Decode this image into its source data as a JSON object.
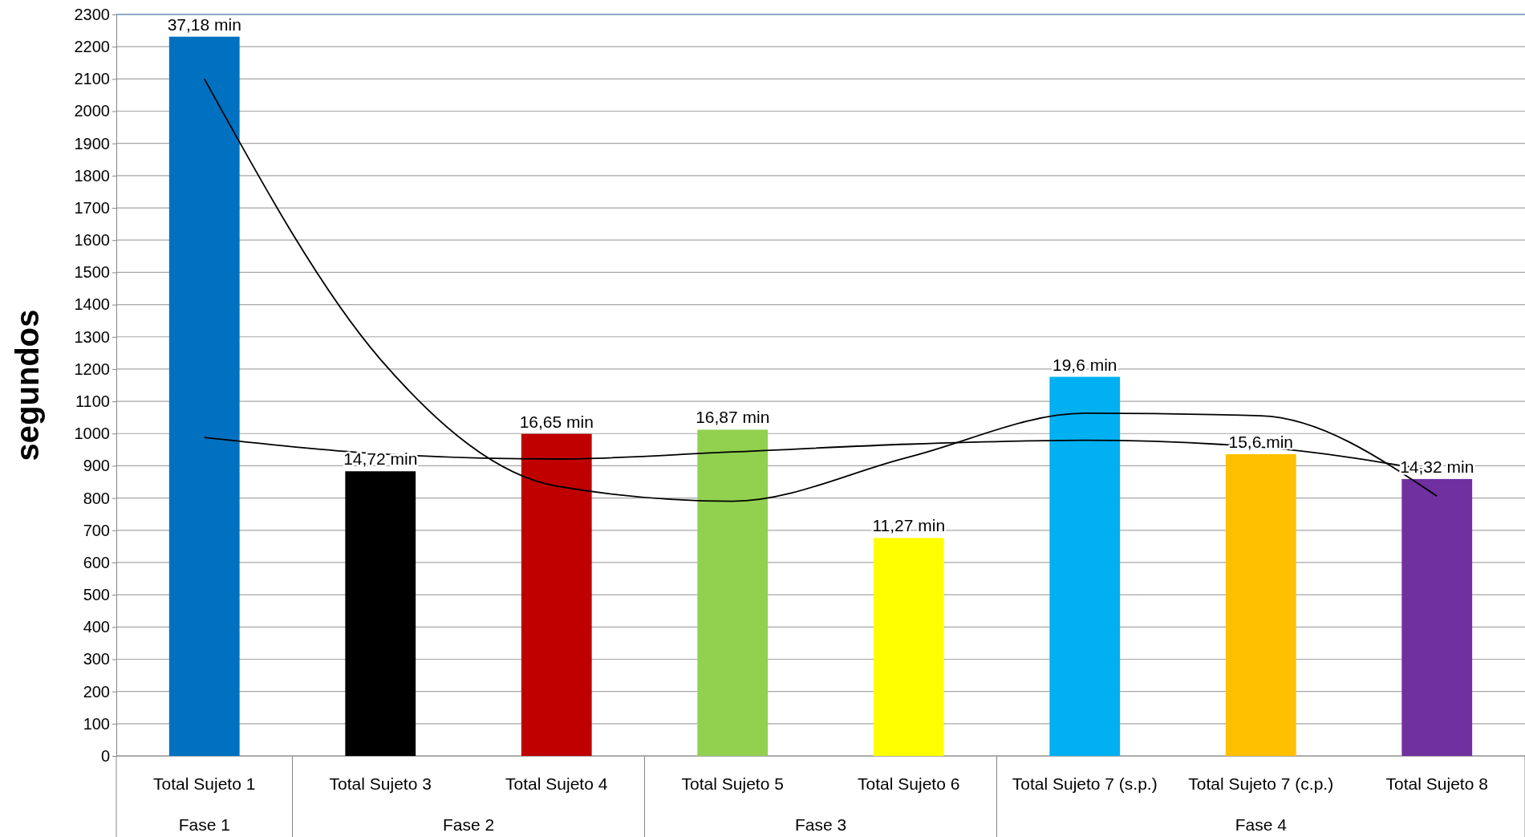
{
  "chart_data": {
    "type": "bar",
    "ylabel": "segundos",
    "categories": [
      "Total Sujeto 1",
      "Total Sujeto 3",
      "Total Sujeto 4",
      "Total Sujeto 5",
      "Total Sujeto 6",
      "Total Sujeto 7 (s.p.)",
      "Total Sujeto 7 (c.p.)",
      "Total Sujeto 8"
    ],
    "series": [
      {
        "values": [
          2231,
          883,
          999,
          1012,
          676,
          1176,
          936,
          859
        ],
        "colors": [
          "#0070c0",
          "#000000",
          "#c00000",
          "#92d050",
          "#ffff00",
          "#00b0f0",
          "#ffc000",
          "#7030a0"
        ]
      },
      {
        "type": "line",
        "color": "#000000",
        "values": [
          2100,
          1230,
          837,
          790,
          927,
          1063,
          1055,
          806
        ]
      },
      {
        "type": "line",
        "color": "#000000",
        "values": [
          988,
          937,
          921,
          943,
          967,
          979,
          958,
          882
        ]
      }
    ],
    "annotations": [
      "Fase 1",
      "Fase 2",
      "Fase 3",
      "Fase 4",
      {
        "text": "37,18 min",
        "x": "Total Sujeto 1",
        "y": 2231
      },
      {
        "text": "14,72 min",
        "x": "Total Sujeto 3",
        "y": 883
      },
      {
        "text": "16,65 min",
        "x": "Total Sujeto 4",
        "y": 999
      },
      {
        "text": "16,87 min",
        "x": "Total Sujeto 5",
        "y": 1012
      },
      {
        "text": "11,27 min",
        "x": "Total Sujeto 6",
        "y": 676
      },
      {
        "text": "19,6 min",
        "x": "Total Sujeto 7 (s.p.)",
        "y": 1176
      },
      {
        "text": "15,6 min",
        "x": "Total Sujeto 7 (c.p.)",
        "y": 936
      },
      {
        "text": "14,32 min",
        "x": "Total Sujeto 8",
        "y": 859
      }
    ],
    "ylim": [
      0,
      2300
    ],
    "yticks": [
      0,
      100,
      200,
      300,
      400,
      500,
      600,
      700,
      800,
      900,
      1000,
      1100,
      1200,
      1300,
      1400,
      1500,
      1600,
      1700,
      1800,
      1900,
      2000,
      2100,
      2200,
      2300
    ],
    "grid": "y",
    "legend": false,
    "marker": "none",
    "line_style": "solid"
  }
}
